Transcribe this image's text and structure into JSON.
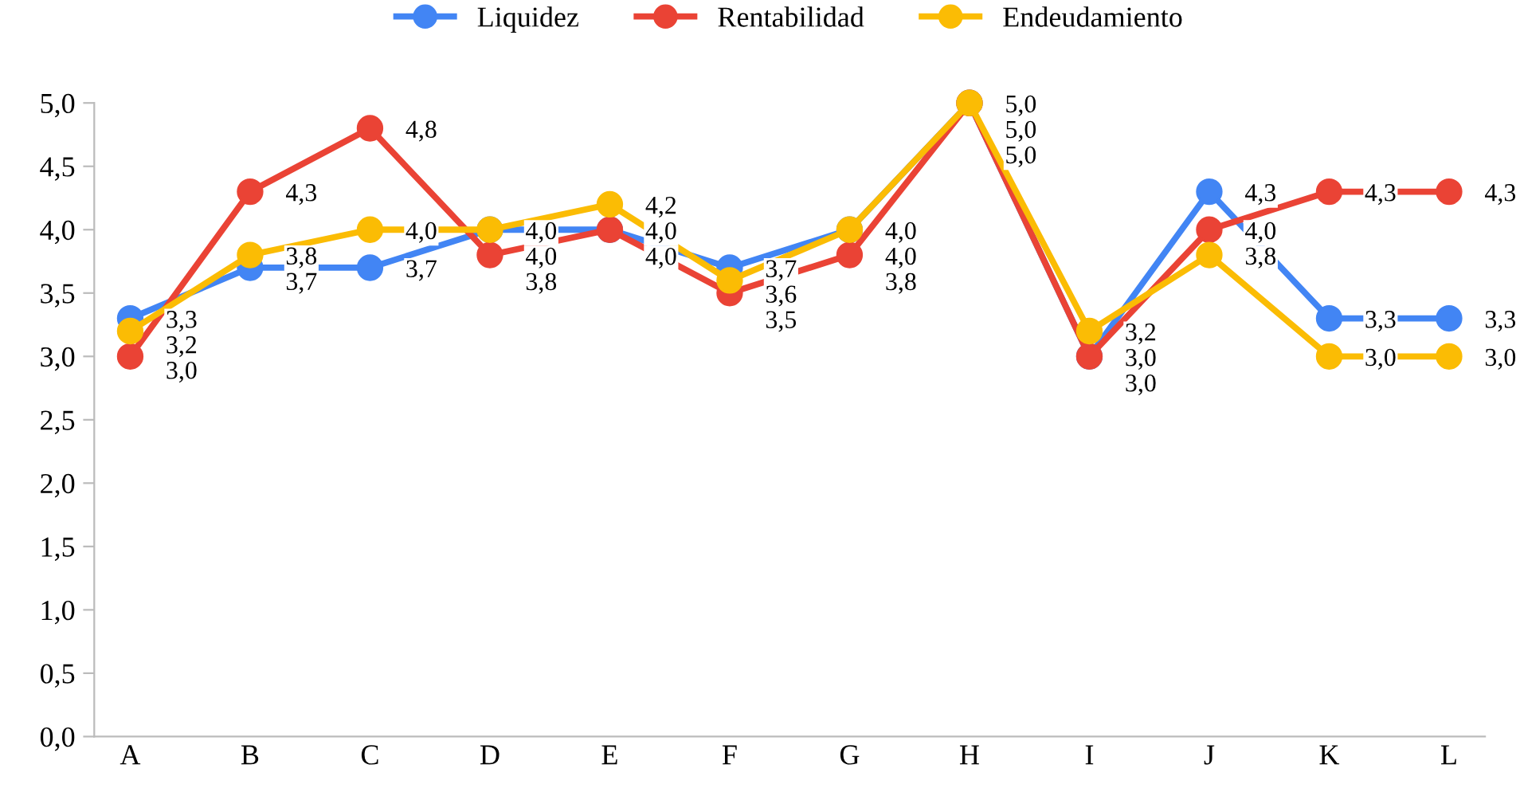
{
  "chart_data": {
    "type": "line",
    "categories": [
      "A",
      "B",
      "C",
      "D",
      "E",
      "F",
      "G",
      "H",
      "I",
      "J",
      "K",
      "L"
    ],
    "series": [
      {
        "name": "Liquidez",
        "color": "#4285f4",
        "values": [
          3.3,
          3.7,
          3.7,
          4.0,
          4.0,
          3.7,
          4.0,
          5.0,
          3.0,
          4.3,
          3.3,
          3.3
        ],
        "value_labels": [
          "3,3",
          "3,7",
          "3,7",
          "4,0",
          "4,0",
          "3,7",
          "4,0",
          "5,0",
          "3,0",
          "4,3",
          "3,3",
          "3,3"
        ]
      },
      {
        "name": "Rentabilidad",
        "color": "#ea4335",
        "values": [
          3.0,
          4.3,
          4.8,
          3.8,
          4.0,
          3.5,
          3.8,
          5.0,
          3.0,
          4.0,
          4.3,
          4.3
        ],
        "value_labels": [
          "3,0",
          "4,3",
          "4,8",
          "3,8",
          "4,0",
          "3,5",
          "3,8",
          "5,0",
          "3,0",
          "4,0",
          "4,3",
          "4,3"
        ]
      },
      {
        "name": "Endeudamiento",
        "color": "#fbbc04",
        "values": [
          3.2,
          3.8,
          4.0,
          4.0,
          4.2,
          3.6,
          4.0,
          5.0,
          3.2,
          3.8,
          3.0,
          3.0
        ],
        "value_labels": [
          "3,2",
          "3,8",
          "4,0",
          "4,0",
          "4,2",
          "3,6",
          "4,0",
          "5,0",
          "3,2",
          "3,8",
          "3,0",
          "3,0"
        ]
      }
    ],
    "ylim": [
      0,
      5
    ],
    "yticks": [
      {
        "value": 0,
        "label": "0,0"
      },
      {
        "value": 0.5,
        "label": "0,5"
      },
      {
        "value": 1,
        "label": "1,0"
      },
      {
        "value": 1.5,
        "label": "1,5"
      },
      {
        "value": 2,
        "label": "2,0"
      },
      {
        "value": 2.5,
        "label": "2,5"
      },
      {
        "value": 3,
        "label": "3,0"
      },
      {
        "value": 3.5,
        "label": "3,5"
      },
      {
        "value": 4,
        "label": "4,0"
      },
      {
        "value": 4.5,
        "label": "4,5"
      },
      {
        "value": 5,
        "label": "5,0"
      }
    ],
    "grid": false,
    "legend": "top",
    "marker": "circle",
    "line_style": "solid"
  }
}
